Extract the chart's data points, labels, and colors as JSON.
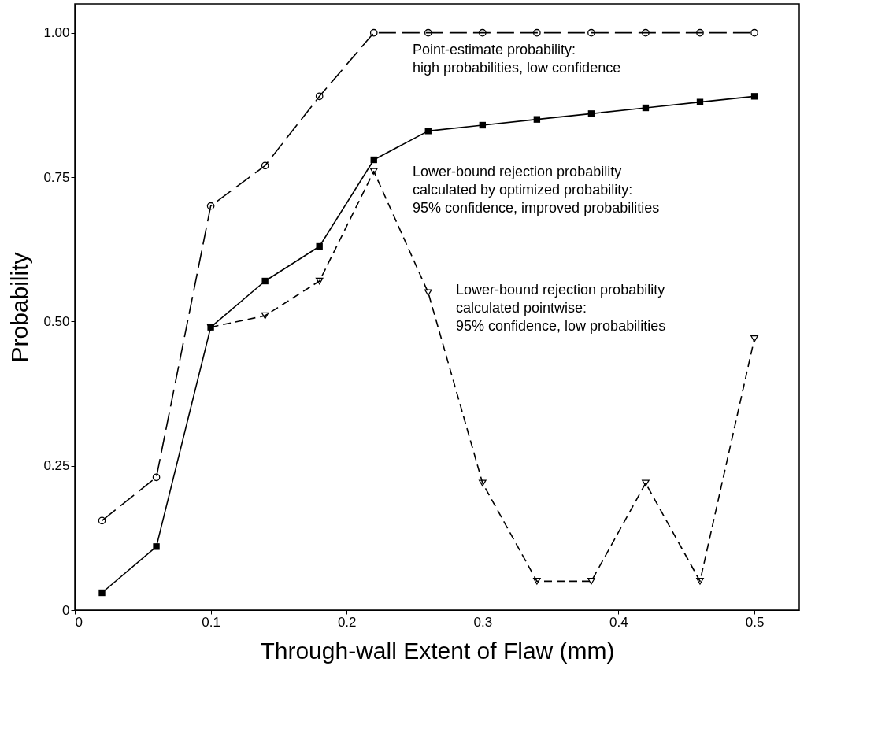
{
  "chart_data": {
    "type": "line",
    "xlabel": "Through-wall Extent of Flaw (mm)",
    "ylabel": "Probability",
    "xlim": [
      0,
      0.533
    ],
    "xticks": [
      0,
      0.1,
      0.2,
      0.3,
      0.4,
      0.5
    ],
    "ylim": [
      0,
      1.05
    ],
    "yticks": [
      0,
      {
        "value": 0.25,
        "label": "0.25"
      },
      {
        "value": 0.5,
        "label": "0.50"
      },
      {
        "value": 0.75,
        "label": "0.75"
      },
      {
        "value": 1,
        "label": "1.00"
      }
    ],
    "grid": false,
    "series": [
      {
        "color": "#000000",
        "marker": "circle",
        "line_style": "dashed",
        "x": [
          0.02,
          0.06,
          0.1,
          0.14,
          0.18,
          0.22,
          0.26,
          0.3,
          0.34,
          0.38,
          0.42,
          0.46,
          0.5
        ],
        "values": [
          0.155,
          0.23,
          0.7,
          0.77,
          0.89,
          1,
          1,
          1,
          1,
          1,
          1,
          1,
          1
        ]
      },
      {
        "color": "#000000",
        "marker": "square",
        "line_style": "solid",
        "x": [
          0.02,
          0.06,
          0.1,
          0.14,
          0.18,
          0.22,
          0.26,
          0.3,
          0.34,
          0.38,
          0.42,
          0.46,
          0.5
        ],
        "values": [
          0.03,
          0.11,
          0.49,
          0.57,
          0.63,
          0.78,
          0.83,
          0.84,
          0.85,
          0.86,
          0.87,
          0.88,
          0.89
        ]
      },
      {
        "color": "#000000",
        "marker": "triangle",
        "line_style": "dotted",
        "x": [
          0.1,
          0.14,
          0.18,
          0.22,
          0.26,
          0.3,
          0.34,
          0.38,
          0.42,
          0.46,
          0.5
        ],
        "values": [
          0.49,
          0.51,
          0.57,
          0.76,
          0.55,
          0.22,
          0.05,
          0.05,
          0.22,
          0.05,
          0.47
        ]
      }
    ],
    "annotations": [
      "Point-estimate probability:\nhigh probabilities, low confidence",
      "Lower-bound rejection probability\ncalculated by optimized probability:\n95% confidence, improved probabilities",
      "Lower-bound rejection probability\ncalculated pointwise:\n95% confidence, low probabilities"
    ]
  }
}
